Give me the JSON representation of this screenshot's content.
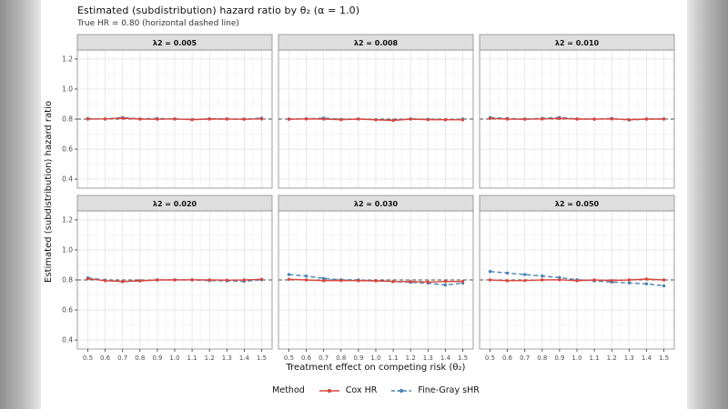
{
  "chart_data": {
    "type": "line",
    "title": "Estimated (subdistribution) hazard ratio by θ₂ (α = 1.0)",
    "subtitle": "True HR = 0.80 (horizontal dashed line)",
    "xlabel": "Treatment effect on competing risk (θ₂)",
    "ylabel": "Estimated (subdistribution) hazard ratio",
    "legend_label": "Method",
    "legend_position": "bottom",
    "grid": true,
    "x": [
      0.5,
      0.6,
      0.7,
      0.8,
      0.9,
      1.0,
      1.1,
      1.2,
      1.3,
      1.4,
      1.5
    ],
    "y_ticks": [
      0.4,
      0.6,
      0.8,
      1.0,
      1.2
    ],
    "xlim": [
      0.44,
      1.56
    ],
    "ylim": [
      0.34,
      1.26
    ],
    "reference_line": {
      "y": 0.8,
      "style": "dashed",
      "color": "#4d4d4d"
    },
    "series": [
      {
        "name": "Cox HR",
        "color": "#d9453d",
        "line": "solid"
      },
      {
        "name": "Fine-Gray sHR",
        "color": "#4682b4",
        "line": "dashed"
      }
    ],
    "facets": [
      {
        "label": "λ2 = 0.005",
        "cox": [
          0.8,
          0.801,
          0.806,
          0.8,
          0.799,
          0.801,
          0.796,
          0.8,
          0.8,
          0.799,
          0.801
        ],
        "fine_gray": [
          0.803,
          0.8,
          0.81,
          0.801,
          0.804,
          0.8,
          0.797,
          0.802,
          0.801,
          0.8,
          0.806
        ]
      },
      {
        "label": "λ2 = 0.008",
        "cox": [
          0.799,
          0.801,
          0.8,
          0.796,
          0.8,
          0.795,
          0.791,
          0.8,
          0.796,
          0.796,
          0.795
        ],
        "fine_gray": [
          0.8,
          0.802,
          0.806,
          0.799,
          0.801,
          0.796,
          0.792,
          0.801,
          0.799,
          0.795,
          0.8
        ]
      },
      {
        "label": "λ2 = 0.010",
        "cox": [
          0.804,
          0.8,
          0.799,
          0.801,
          0.804,
          0.8,
          0.8,
          0.801,
          0.796,
          0.8,
          0.8
        ],
        "fine_gray": [
          0.81,
          0.804,
          0.8,
          0.805,
          0.811,
          0.801,
          0.799,
          0.804,
          0.794,
          0.8,
          0.801
        ]
      },
      {
        "label": "λ2 = 0.020",
        "cox": [
          0.808,
          0.795,
          0.79,
          0.794,
          0.8,
          0.8,
          0.801,
          0.8,
          0.799,
          0.8,
          0.804
        ],
        "fine_gray": [
          0.814,
          0.799,
          0.789,
          0.794,
          0.8,
          0.801,
          0.8,
          0.796,
          0.794,
          0.791,
          0.801
        ]
      },
      {
        "label": "λ2 = 0.030",
        "cox": [
          0.804,
          0.8,
          0.795,
          0.796,
          0.795,
          0.794,
          0.79,
          0.789,
          0.786,
          0.79,
          0.79
        ],
        "fine_gray": [
          0.836,
          0.826,
          0.81,
          0.801,
          0.8,
          0.795,
          0.789,
          0.784,
          0.779,
          0.766,
          0.779
        ]
      },
      {
        "label": "λ2 = 0.050",
        "cox": [
          0.8,
          0.795,
          0.796,
          0.8,
          0.801,
          0.795,
          0.8,
          0.796,
          0.8,
          0.806,
          0.8
        ],
        "fine_gray": [
          0.856,
          0.846,
          0.836,
          0.826,
          0.816,
          0.801,
          0.794,
          0.786,
          0.78,
          0.774,
          0.761
        ]
      }
    ]
  }
}
